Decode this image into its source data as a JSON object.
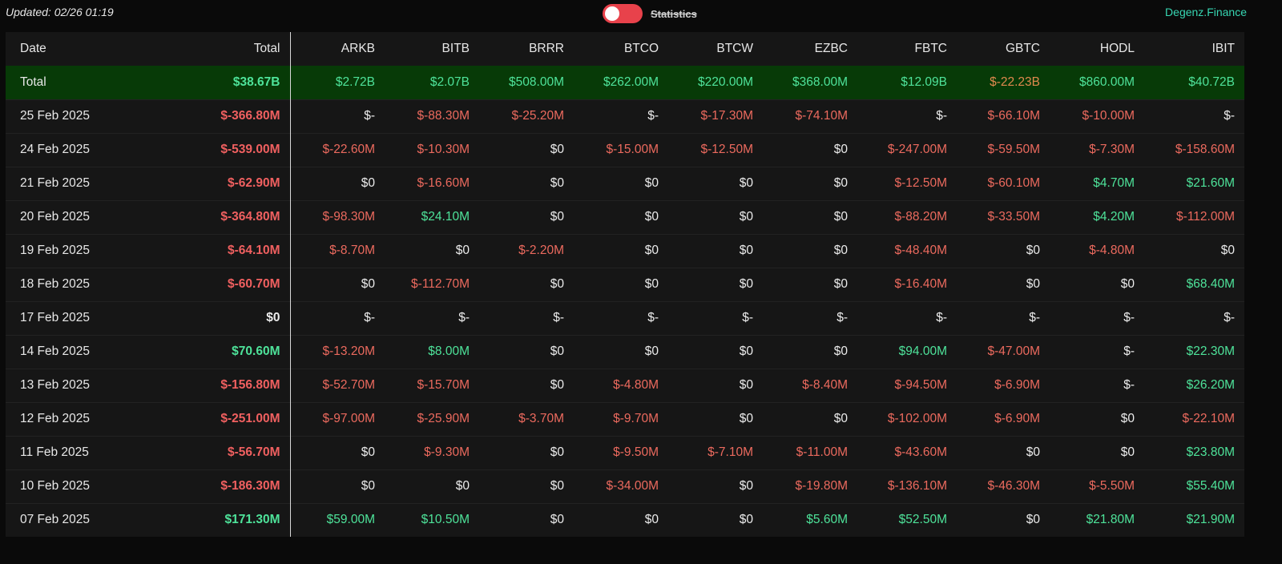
{
  "header": {
    "updated": "Updated: 02/26 01:19",
    "toggle_label": "Statistics",
    "brand": "Degenz.Finance"
  },
  "colors": {
    "positive": "#4ee39a",
    "negative": "#ec6a5e",
    "neutral": "#ececec",
    "toggle": "#e8424b",
    "total_row_bg": "#073a07",
    "brand": "#37d6b2"
  },
  "table": {
    "columns": [
      "Date",
      "Total",
      "ARKB",
      "BITB",
      "BRRR",
      "BTCO",
      "BTCW",
      "EZBC",
      "FBTC",
      "GBTC",
      "HODL",
      "IBIT"
    ],
    "total_row": {
      "label": "Total",
      "cells": [
        {
          "v": "$38.67B",
          "c": "pos"
        },
        {
          "v": "$2.72B",
          "c": "pos"
        },
        {
          "v": "$2.07B",
          "c": "pos"
        },
        {
          "v": "$508.00M",
          "c": "pos"
        },
        {
          "v": "$262.00M",
          "c": "pos"
        },
        {
          "v": "$220.00M",
          "c": "pos"
        },
        {
          "v": "$368.00M",
          "c": "pos"
        },
        {
          "v": "$12.09B",
          "c": "pos"
        },
        {
          "v": "$-22.23B",
          "c": "orn"
        },
        {
          "v": "$860.00M",
          "c": "pos"
        },
        {
          "v": "$40.72B",
          "c": "pos"
        }
      ]
    },
    "rows": [
      {
        "date": "25 Feb 2025",
        "cells": [
          {
            "v": "$-366.80M",
            "c": "neg"
          },
          {
            "v": "$-",
            "c": "neu"
          },
          {
            "v": "$-88.30M",
            "c": "neg"
          },
          {
            "v": "$-25.20M",
            "c": "neg"
          },
          {
            "v": "$-",
            "c": "neu"
          },
          {
            "v": "$-17.30M",
            "c": "neg"
          },
          {
            "v": "$-74.10M",
            "c": "neg"
          },
          {
            "v": "$-",
            "c": "neu"
          },
          {
            "v": "$-66.10M",
            "c": "neg"
          },
          {
            "v": "$-10.00M",
            "c": "neg"
          },
          {
            "v": "$-",
            "c": "neu"
          }
        ]
      },
      {
        "date": "24 Feb 2025",
        "cells": [
          {
            "v": "$-539.00M",
            "c": "neg"
          },
          {
            "v": "$-22.60M",
            "c": "neg"
          },
          {
            "v": "$-10.30M",
            "c": "neg"
          },
          {
            "v": "$0",
            "c": "neu"
          },
          {
            "v": "$-15.00M",
            "c": "neg"
          },
          {
            "v": "$-12.50M",
            "c": "neg"
          },
          {
            "v": "$0",
            "c": "neu"
          },
          {
            "v": "$-247.00M",
            "c": "neg"
          },
          {
            "v": "$-59.50M",
            "c": "neg"
          },
          {
            "v": "$-7.30M",
            "c": "neg"
          },
          {
            "v": "$-158.60M",
            "c": "neg"
          }
        ]
      },
      {
        "date": "21 Feb 2025",
        "cells": [
          {
            "v": "$-62.90M",
            "c": "neg"
          },
          {
            "v": "$0",
            "c": "neu"
          },
          {
            "v": "$-16.60M",
            "c": "neg"
          },
          {
            "v": "$0",
            "c": "neu"
          },
          {
            "v": "$0",
            "c": "neu"
          },
          {
            "v": "$0",
            "c": "neu"
          },
          {
            "v": "$0",
            "c": "neu"
          },
          {
            "v": "$-12.50M",
            "c": "neg"
          },
          {
            "v": "$-60.10M",
            "c": "neg"
          },
          {
            "v": "$4.70M",
            "c": "pos"
          },
          {
            "v": "$21.60M",
            "c": "pos"
          }
        ]
      },
      {
        "date": "20 Feb 2025",
        "cells": [
          {
            "v": "$-364.80M",
            "c": "neg"
          },
          {
            "v": "$-98.30M",
            "c": "neg"
          },
          {
            "v": "$24.10M",
            "c": "pos"
          },
          {
            "v": "$0",
            "c": "neu"
          },
          {
            "v": "$0",
            "c": "neu"
          },
          {
            "v": "$0",
            "c": "neu"
          },
          {
            "v": "$0",
            "c": "neu"
          },
          {
            "v": "$-88.20M",
            "c": "neg"
          },
          {
            "v": "$-33.50M",
            "c": "neg"
          },
          {
            "v": "$4.20M",
            "c": "pos"
          },
          {
            "v": "$-112.00M",
            "c": "neg"
          }
        ]
      },
      {
        "date": "19 Feb 2025",
        "cells": [
          {
            "v": "$-64.10M",
            "c": "neg"
          },
          {
            "v": "$-8.70M",
            "c": "neg"
          },
          {
            "v": "$0",
            "c": "neu"
          },
          {
            "v": "$-2.20M",
            "c": "neg"
          },
          {
            "v": "$0",
            "c": "neu"
          },
          {
            "v": "$0",
            "c": "neu"
          },
          {
            "v": "$0",
            "c": "neu"
          },
          {
            "v": "$-48.40M",
            "c": "neg"
          },
          {
            "v": "$0",
            "c": "neu"
          },
          {
            "v": "$-4.80M",
            "c": "neg"
          },
          {
            "v": "$0",
            "c": "neu"
          }
        ]
      },
      {
        "date": "18 Feb 2025",
        "cells": [
          {
            "v": "$-60.70M",
            "c": "neg"
          },
          {
            "v": "$0",
            "c": "neu"
          },
          {
            "v": "$-112.70M",
            "c": "neg"
          },
          {
            "v": "$0",
            "c": "neu"
          },
          {
            "v": "$0",
            "c": "neu"
          },
          {
            "v": "$0",
            "c": "neu"
          },
          {
            "v": "$0",
            "c": "neu"
          },
          {
            "v": "$-16.40M",
            "c": "neg"
          },
          {
            "v": "$0",
            "c": "neu"
          },
          {
            "v": "$0",
            "c": "neu"
          },
          {
            "v": "$68.40M",
            "c": "pos"
          }
        ]
      },
      {
        "date": "17 Feb 2025",
        "cells": [
          {
            "v": "$0",
            "c": "neu"
          },
          {
            "v": "$-",
            "c": "neu"
          },
          {
            "v": "$-",
            "c": "neu"
          },
          {
            "v": "$-",
            "c": "neu"
          },
          {
            "v": "$-",
            "c": "neu"
          },
          {
            "v": "$-",
            "c": "neu"
          },
          {
            "v": "$-",
            "c": "neu"
          },
          {
            "v": "$-",
            "c": "neu"
          },
          {
            "v": "$-",
            "c": "neu"
          },
          {
            "v": "$-",
            "c": "neu"
          },
          {
            "v": "$-",
            "c": "neu"
          }
        ]
      },
      {
        "date": "14 Feb 2025",
        "cells": [
          {
            "v": "$70.60M",
            "c": "pos"
          },
          {
            "v": "$-13.20M",
            "c": "neg"
          },
          {
            "v": "$8.00M",
            "c": "pos"
          },
          {
            "v": "$0",
            "c": "neu"
          },
          {
            "v": "$0",
            "c": "neu"
          },
          {
            "v": "$0",
            "c": "neu"
          },
          {
            "v": "$0",
            "c": "neu"
          },
          {
            "v": "$94.00M",
            "c": "pos"
          },
          {
            "v": "$-47.00M",
            "c": "neg"
          },
          {
            "v": "$-",
            "c": "neu"
          },
          {
            "v": "$22.30M",
            "c": "pos"
          }
        ]
      },
      {
        "date": "13 Feb 2025",
        "cells": [
          {
            "v": "$-156.80M",
            "c": "neg"
          },
          {
            "v": "$-52.70M",
            "c": "neg"
          },
          {
            "v": "$-15.70M",
            "c": "neg"
          },
          {
            "v": "$0",
            "c": "neu"
          },
          {
            "v": "$-4.80M",
            "c": "neg"
          },
          {
            "v": "$0",
            "c": "neu"
          },
          {
            "v": "$-8.40M",
            "c": "neg"
          },
          {
            "v": "$-94.50M",
            "c": "neg"
          },
          {
            "v": "$-6.90M",
            "c": "neg"
          },
          {
            "v": "$-",
            "c": "neu"
          },
          {
            "v": "$26.20M",
            "c": "pos"
          }
        ]
      },
      {
        "date": "12 Feb 2025",
        "cells": [
          {
            "v": "$-251.00M",
            "c": "neg"
          },
          {
            "v": "$-97.00M",
            "c": "neg"
          },
          {
            "v": "$-25.90M",
            "c": "neg"
          },
          {
            "v": "$-3.70M",
            "c": "neg"
          },
          {
            "v": "$-9.70M",
            "c": "neg"
          },
          {
            "v": "$0",
            "c": "neu"
          },
          {
            "v": "$0",
            "c": "neu"
          },
          {
            "v": "$-102.00M",
            "c": "neg"
          },
          {
            "v": "$-6.90M",
            "c": "neg"
          },
          {
            "v": "$0",
            "c": "neu"
          },
          {
            "v": "$-22.10M",
            "c": "neg"
          }
        ]
      },
      {
        "date": "11 Feb 2025",
        "cells": [
          {
            "v": "$-56.70M",
            "c": "neg"
          },
          {
            "v": "$0",
            "c": "neu"
          },
          {
            "v": "$-9.30M",
            "c": "neg"
          },
          {
            "v": "$0",
            "c": "neu"
          },
          {
            "v": "$-9.50M",
            "c": "neg"
          },
          {
            "v": "$-7.10M",
            "c": "neg"
          },
          {
            "v": "$-11.00M",
            "c": "neg"
          },
          {
            "v": "$-43.60M",
            "c": "neg"
          },
          {
            "v": "$0",
            "c": "neu"
          },
          {
            "v": "$0",
            "c": "neu"
          },
          {
            "v": "$23.80M",
            "c": "pos"
          }
        ]
      },
      {
        "date": "10 Feb 2025",
        "cells": [
          {
            "v": "$-186.30M",
            "c": "neg"
          },
          {
            "v": "$0",
            "c": "neu"
          },
          {
            "v": "$0",
            "c": "neu"
          },
          {
            "v": "$0",
            "c": "neu"
          },
          {
            "v": "$-34.00M",
            "c": "neg"
          },
          {
            "v": "$0",
            "c": "neu"
          },
          {
            "v": "$-19.80M",
            "c": "neg"
          },
          {
            "v": "$-136.10M",
            "c": "neg"
          },
          {
            "v": "$-46.30M",
            "c": "neg"
          },
          {
            "v": "$-5.50M",
            "c": "neg"
          },
          {
            "v": "$55.40M",
            "c": "pos"
          }
        ]
      },
      {
        "date": "07 Feb 2025",
        "cells": [
          {
            "v": "$171.30M",
            "c": "pos"
          },
          {
            "v": "$59.00M",
            "c": "pos"
          },
          {
            "v": "$10.50M",
            "c": "pos"
          },
          {
            "v": "$0",
            "c": "neu"
          },
          {
            "v": "$0",
            "c": "neu"
          },
          {
            "v": "$0",
            "c": "neu"
          },
          {
            "v": "$5.60M",
            "c": "pos"
          },
          {
            "v": "$52.50M",
            "c": "pos"
          },
          {
            "v": "$0",
            "c": "neu"
          },
          {
            "v": "$21.80M",
            "c": "pos"
          },
          {
            "v": "$21.90M",
            "c": "pos"
          }
        ]
      }
    ]
  }
}
